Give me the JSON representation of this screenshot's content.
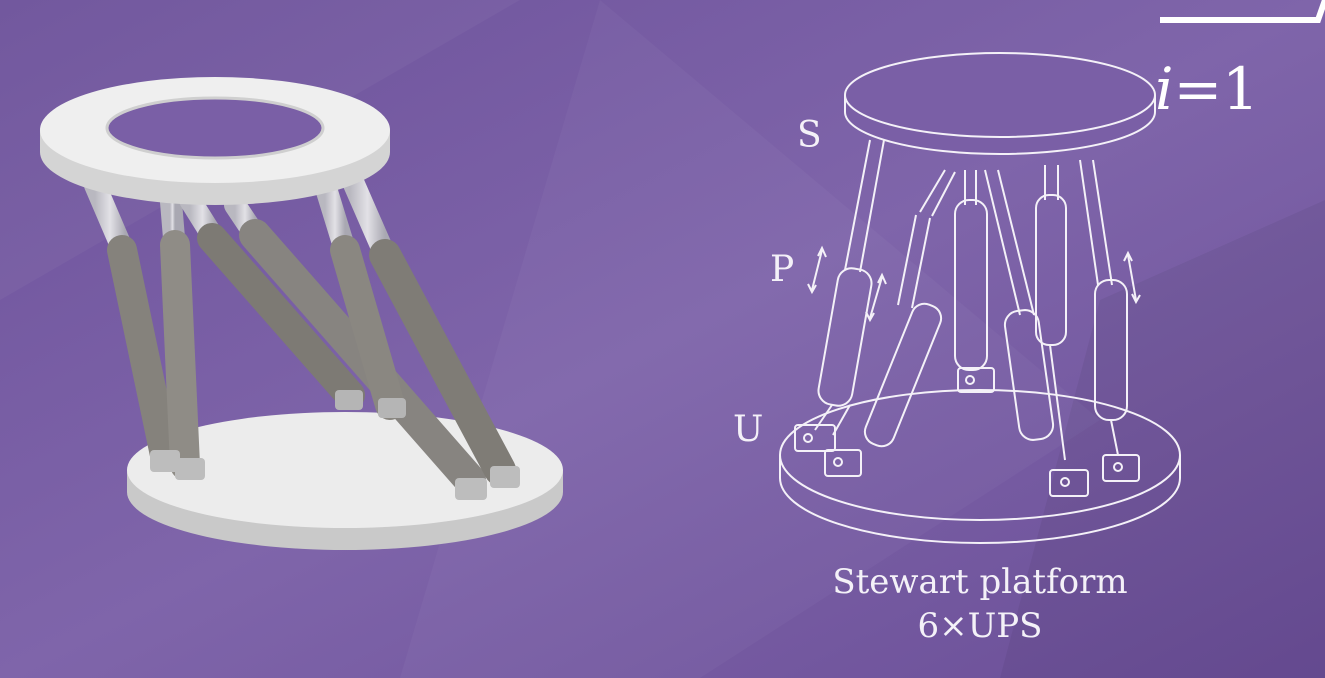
{
  "colors": {
    "background": "#7a5fa6",
    "background_shade": "#6a4e97",
    "line_art": "#f4f1f8",
    "platform_white": "#ececec",
    "actuator_gray": "#8d8a84"
  },
  "diagram": {
    "labels": {
      "spherical_joint": "S",
      "prismatic_joint": "P",
      "universal_joint": "U"
    },
    "caption": {
      "line1": "Stewart platform",
      "line2": "6×UPS"
    }
  },
  "math": {
    "index_var": "i",
    "equals": "=",
    "lower_bound": "1"
  }
}
